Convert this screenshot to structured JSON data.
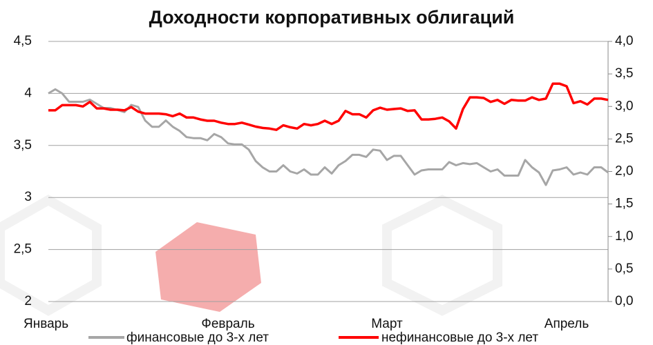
{
  "chart_data": {
    "type": "line",
    "title": "Доходности корпоративных облигаций",
    "categories": [
      "Январь",
      null,
      null,
      null,
      null,
      null,
      null,
      null,
      null,
      null,
      null,
      null,
      null,
      null,
      null,
      null,
      null,
      null,
      null,
      null,
      null,
      null,
      null,
      null,
      null,
      null,
      "Февраль",
      null,
      null,
      null,
      null,
      null,
      null,
      null,
      null,
      null,
      null,
      null,
      null,
      null,
      null,
      null,
      null,
      null,
      null,
      null,
      null,
      null,
      null,
      "Март",
      null,
      null,
      null,
      null,
      null,
      null,
      null,
      null,
      null,
      null,
      null,
      null,
      null,
      null,
      null,
      null,
      null,
      null,
      null,
      null,
      null,
      null,
      null,
      null,
      null,
      "Апрель",
      null,
      null,
      null,
      null,
      null,
      null
    ],
    "series": [
      {
        "name": "финансовые до 3-х лет",
        "color": "#a6a6a6",
        "axis": "y",
        "values": [
          4.0,
          4.04,
          4.0,
          3.92,
          3.92,
          3.92,
          3.94,
          3.9,
          3.86,
          3.86,
          3.84,
          3.82,
          3.89,
          3.87,
          3.74,
          3.68,
          3.68,
          3.74,
          3.68,
          3.64,
          3.58,
          3.57,
          3.57,
          3.55,
          3.61,
          3.58,
          3.52,
          3.51,
          3.51,
          3.46,
          3.35,
          3.29,
          3.25,
          3.25,
          3.31,
          3.25,
          3.23,
          3.27,
          3.22,
          3.22,
          3.29,
          3.23,
          3.31,
          3.35,
          3.41,
          3.41,
          3.39,
          3.46,
          3.45,
          3.36,
          3.4,
          3.4,
          3.31,
          3.22,
          3.26,
          3.27,
          3.27,
          3.27,
          3.34,
          3.31,
          3.33,
          3.32,
          3.33,
          3.29,
          3.25,
          3.27,
          3.21,
          3.21,
          3.21,
          3.36,
          3.29,
          3.24,
          3.12,
          3.26,
          3.27,
          3.29,
          3.22,
          3.24,
          3.22,
          3.29,
          3.29,
          3.24
        ]
      },
      {
        "name": "нефинансовые до 3-х лет",
        "color": "#ff0000",
        "axis": "y2",
        "values": [
          2.94,
          2.94,
          3.02,
          3.02,
          3.02,
          3.0,
          3.07,
          2.97,
          2.97,
          2.95,
          2.95,
          2.94,
          2.99,
          2.92,
          2.89,
          2.89,
          2.89,
          2.88,
          2.85,
          2.89,
          2.83,
          2.83,
          2.8,
          2.78,
          2.78,
          2.75,
          2.73,
          2.73,
          2.75,
          2.72,
          2.69,
          2.67,
          2.66,
          2.64,
          2.71,
          2.68,
          2.66,
          2.73,
          2.71,
          2.73,
          2.78,
          2.73,
          2.78,
          2.93,
          2.88,
          2.88,
          2.83,
          2.94,
          2.98,
          2.95,
          2.96,
          2.97,
          2.93,
          2.94,
          2.8,
          2.8,
          2.81,
          2.83,
          2.77,
          2.66,
          2.96,
          3.14,
          3.14,
          3.13,
          3.07,
          3.1,
          3.04,
          3.1,
          3.09,
          3.09,
          3.14,
          3.1,
          3.12,
          3.35,
          3.35,
          3.31,
          3.05,
          3.08,
          3.03,
          3.12,
          3.12,
          3.1
        ]
      }
    ],
    "ylim": [
      2,
      4.5
    ],
    "yticks": [
      2,
      {
        "value": 2.5,
        "label": "2,5"
      },
      3,
      {
        "value": 3.5,
        "label": "3,5"
      },
      4,
      {
        "value": 4.5,
        "label": "4,5"
      }
    ],
    "y2lim": [
      0,
      4
    ],
    "y2ticks": [
      {
        "value": 0,
        "label": "0,0"
      },
      {
        "value": 0.5,
        "label": "0,5"
      },
      {
        "value": 1,
        "label": "1,0"
      },
      {
        "value": 1.5,
        "label": "1,5"
      },
      {
        "value": 2,
        "label": "2,0"
      },
      {
        "value": 2.5,
        "label": "2,5"
      },
      {
        "value": 3,
        "label": "3,0"
      },
      {
        "value": 3.5,
        "label": "3,5"
      },
      {
        "value": 4,
        "label": "4,0"
      }
    ],
    "grid": true
  }
}
